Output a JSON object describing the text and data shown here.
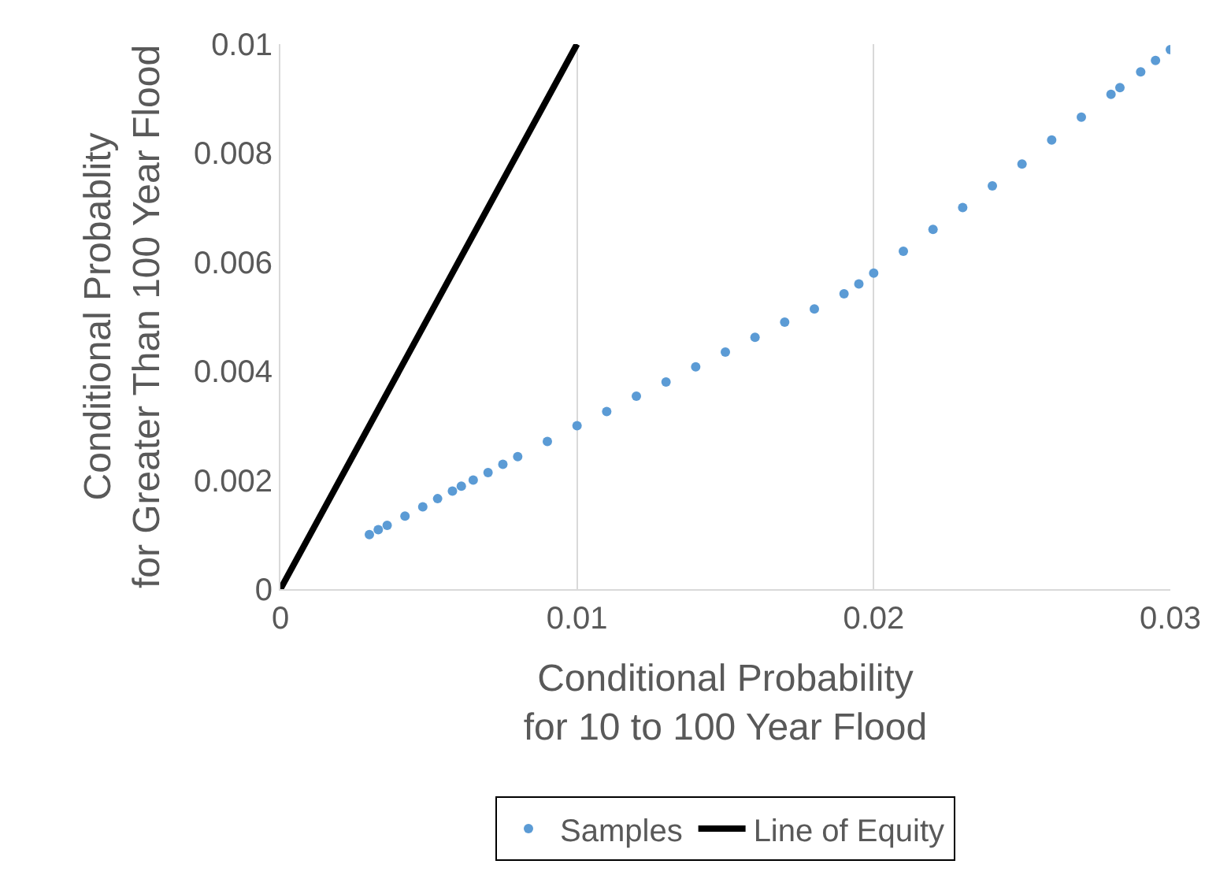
{
  "chart_data": {
    "type": "scatter",
    "xlabel": "Conditional Probability\nfor 10 to 100 Year Flood",
    "ylabel": "Conditional Probablity\nfor Greater Than 100 Year Flood",
    "xlim": [
      0,
      0.03
    ],
    "xticks": [
      0,
      0.01,
      0.02,
      0.03
    ],
    "ylim": [
      0,
      0.01
    ],
    "yticks": [
      0,
      0.002,
      0.004,
      0.006,
      0.008,
      0.01
    ],
    "grid": "x",
    "legend": "bottom",
    "marker": "circle",
    "series": [
      {
        "name": "Samples",
        "color": "#5b9bd5",
        "x": [
          0.003,
          0.0033,
          0.0036,
          0.0042,
          0.0048,
          0.0053,
          0.0058,
          0.0061,
          0.0065,
          0.007,
          0.0075,
          0.008,
          0.009,
          0.01,
          0.011,
          0.012,
          0.013,
          0.014,
          0.015,
          0.016,
          0.017,
          0.018,
          0.019,
          0.0195,
          0.02,
          0.021,
          0.022,
          0.023,
          0.024,
          0.025,
          0.026,
          0.027,
          0.028,
          0.0283,
          0.029,
          0.0295,
          0.03
        ],
        "values": [
          0.001,
          0.00109,
          0.00117,
          0.00134,
          0.00151,
          0.00166,
          0.0018,
          0.00189,
          0.002,
          0.00214,
          0.00229,
          0.00243,
          0.00271,
          0.003,
          0.00326,
          0.00354,
          0.0038,
          0.00408,
          0.00435,
          0.00462,
          0.0049,
          0.00514,
          0.00542,
          0.0056,
          0.0058,
          0.0062,
          0.0066,
          0.007,
          0.0074,
          0.0078,
          0.00824,
          0.00866,
          0.00908,
          0.0092,
          0.00949,
          0.0097,
          0.0099
        ]
      },
      {
        "name": "Line of Equity",
        "type": "line",
        "color": "#000000",
        "marker": "none",
        "x": [
          0,
          0.01
        ],
        "values": [
          0,
          0.01
        ]
      }
    ]
  }
}
